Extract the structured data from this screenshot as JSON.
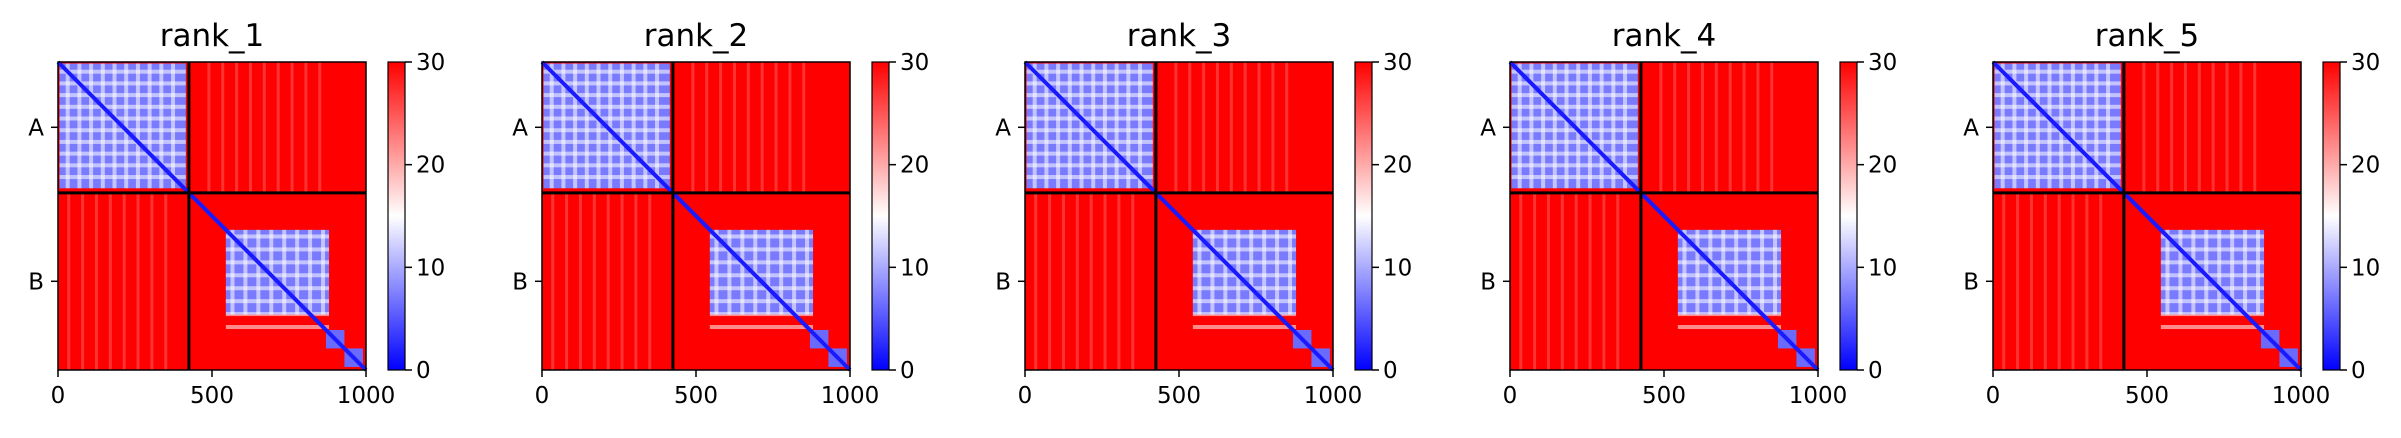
{
  "chart_data": [
    {
      "type": "heatmap",
      "title": "rank_1",
      "x_ticks": [
        0,
        500,
        1000
      ],
      "x_tick_labels": [
        "0",
        "500",
        "1000"
      ],
      "xlim": [
        0,
        1000
      ],
      "ylim": [
        0,
        1000
      ],
      "chain_boundary": 425,
      "y_tick_labels": [
        {
          "label": "A",
          "pos": 212
        },
        {
          "label": "B",
          "pos": 712
        }
      ],
      "colorbar": {
        "range": [
          0,
          30
        ],
        "ticks": [
          0,
          10,
          20,
          30
        ],
        "tick_labels": [
          "0",
          "10",
          "20",
          "30"
        ],
        "colors": [
          "#0000ff",
          "#ffffff",
          "#ff0000"
        ]
      }
    },
    {
      "type": "heatmap",
      "title": "rank_2",
      "x_ticks": [
        0,
        500,
        1000
      ],
      "x_tick_labels": [
        "0",
        "500",
        "1000"
      ],
      "xlim": [
        0,
        1000
      ],
      "ylim": [
        0,
        1000
      ],
      "chain_boundary": 425,
      "y_tick_labels": [
        {
          "label": "A",
          "pos": 212
        },
        {
          "label": "B",
          "pos": 712
        }
      ],
      "colorbar": {
        "range": [
          0,
          30
        ],
        "ticks": [
          0,
          10,
          20,
          30
        ],
        "tick_labels": [
          "0",
          "10",
          "20",
          "30"
        ],
        "colors": [
          "#0000ff",
          "#ffffff",
          "#ff0000"
        ]
      }
    },
    {
      "type": "heatmap",
      "title": "rank_3",
      "x_ticks": [
        0,
        500,
        1000
      ],
      "x_tick_labels": [
        "0",
        "500",
        "1000"
      ],
      "xlim": [
        0,
        1000
      ],
      "ylim": [
        0,
        1000
      ],
      "chain_boundary": 425,
      "y_tick_labels": [
        {
          "label": "A",
          "pos": 212
        },
        {
          "label": "B",
          "pos": 712
        }
      ],
      "colorbar": {
        "range": [
          0,
          30
        ],
        "ticks": [
          0,
          10,
          20,
          30
        ],
        "tick_labels": [
          "0",
          "10",
          "20",
          "30"
        ],
        "colors": [
          "#0000ff",
          "#ffffff",
          "#ff0000"
        ]
      }
    },
    {
      "type": "heatmap",
      "title": "rank_4",
      "x_ticks": [
        0,
        500,
        1000
      ],
      "x_tick_labels": [
        "0",
        "500",
        "1000"
      ],
      "xlim": [
        0,
        1000
      ],
      "ylim": [
        0,
        1000
      ],
      "chain_boundary": 425,
      "y_tick_labels": [
        {
          "label": "A",
          "pos": 212
        },
        {
          "label": "B",
          "pos": 712
        }
      ],
      "colorbar": {
        "range": [
          0,
          30
        ],
        "ticks": [
          0,
          10,
          20,
          30
        ],
        "tick_labels": [
          "0",
          "10",
          "20",
          "30"
        ],
        "colors": [
          "#0000ff",
          "#ffffff",
          "#ff0000"
        ]
      }
    },
    {
      "type": "heatmap",
      "title": "rank_5",
      "x_ticks": [
        0,
        500,
        1000
      ],
      "x_tick_labels": [
        "0",
        "500",
        "1000"
      ],
      "xlim": [
        0,
        1000
      ],
      "ylim": [
        0,
        1000
      ],
      "chain_boundary": 425,
      "y_tick_labels": [
        {
          "label": "A",
          "pos": 212
        },
        {
          "label": "B",
          "pos": 712
        }
      ],
      "colorbar": {
        "range": [
          0,
          30
        ],
        "ticks": [
          0,
          10,
          20,
          30
        ],
        "tick_labels": [
          "0",
          "10",
          "20",
          "30"
        ],
        "colors": [
          "#0000ff",
          "#ffffff",
          "#ff0000"
        ]
      }
    }
  ]
}
